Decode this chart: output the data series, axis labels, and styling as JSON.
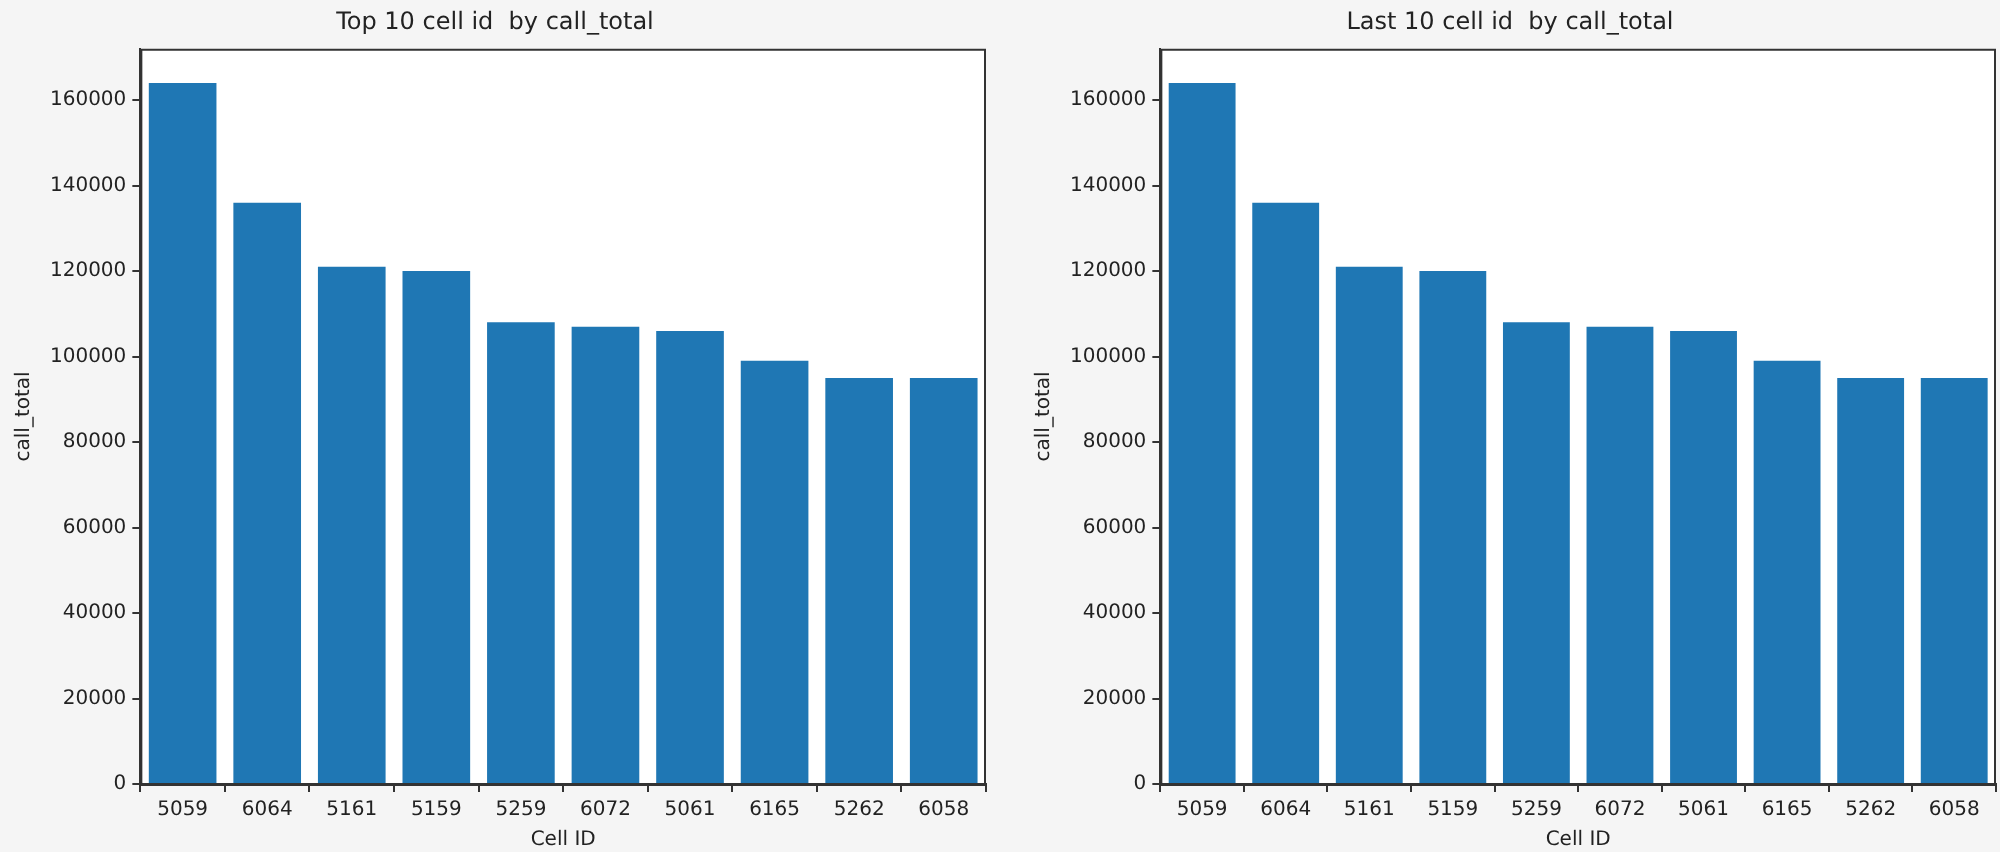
{
  "chart_data": [
    {
      "type": "bar",
      "title": "Top 10 cell id  by call_total",
      "xlabel": "Cell ID",
      "ylabel": "call_total",
      "categories": [
        "5059",
        "6064",
        "5161",
        "5159",
        "5259",
        "6072",
        "5061",
        "6165",
        "5262",
        "6058"
      ],
      "values": [
        164000,
        136000,
        121000,
        120000,
        108000,
        107000,
        106000,
        99000,
        95000,
        95000
      ],
      "color": "#1f77b4",
      "ylim": [
        0,
        172000
      ],
      "yticks": [
        0,
        20000,
        40000,
        60000,
        80000,
        100000,
        120000,
        140000,
        160000
      ],
      "grid": false,
      "legend": false
    },
    {
      "type": "bar",
      "title": "Last 10 cell id  by call_total",
      "xlabel": "Cell ID",
      "ylabel": "call_total",
      "categories": [
        "5059",
        "6064",
        "5161",
        "5159",
        "5259",
        "6072",
        "5061",
        "6165",
        "5262",
        "6058"
      ],
      "values": [
        164000,
        136000,
        121000,
        120000,
        108000,
        107000,
        106000,
        99000,
        95000,
        95000
      ],
      "color": "#1f77b4",
      "ylim": [
        0,
        172000
      ],
      "yticks": [
        0,
        20000,
        40000,
        60000,
        80000,
        100000,
        120000,
        140000,
        160000
      ],
      "grid": false,
      "legend": false
    }
  ]
}
